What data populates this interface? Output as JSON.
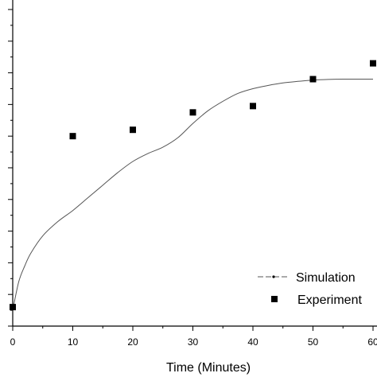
{
  "chart_data": {
    "type": "scatter",
    "xlabel": "Time (Minutes)",
    "xlim": [
      0,
      60
    ],
    "x_ticks": [
      0,
      10,
      20,
      30,
      40,
      50,
      60
    ],
    "x_tick_labels": [
      "0",
      "10",
      "20",
      "30",
      "40",
      "50",
      "60"
    ],
    "ylim": [
      0,
      10.3
    ],
    "y_ticks": [
      0,
      1,
      2,
      3,
      4,
      5,
      6,
      7,
      8,
      9,
      10
    ],
    "grid": false,
    "legend_position": "bottom-right",
    "series": [
      {
        "name": "Simulation",
        "kind": "line",
        "color": "#555555",
        "x": [
          0,
          1,
          2,
          3,
          5,
          7.5,
          10,
          12.5,
          15,
          17.5,
          20,
          22.5,
          25,
          27.5,
          30,
          32.5,
          35,
          37.5,
          40,
          42.5,
          45,
          47.5,
          50,
          52.5,
          55,
          57.5,
          60
        ],
        "y": [
          0.5,
          1.4,
          1.9,
          2.3,
          2.85,
          3.3,
          3.65,
          4.05,
          4.45,
          4.85,
          5.2,
          5.45,
          5.65,
          5.95,
          6.4,
          6.8,
          7.1,
          7.35,
          7.5,
          7.6,
          7.68,
          7.73,
          7.77,
          7.79,
          7.8,
          7.8,
          7.8
        ]
      },
      {
        "name": "Experiment",
        "kind": "markers",
        "color": "#000000",
        "x": [
          0,
          10,
          20,
          30,
          40,
          50,
          60
        ],
        "y": [
          0.6,
          6.0,
          6.2,
          6.75,
          6.95,
          7.8,
          8.3
        ]
      }
    ]
  }
}
